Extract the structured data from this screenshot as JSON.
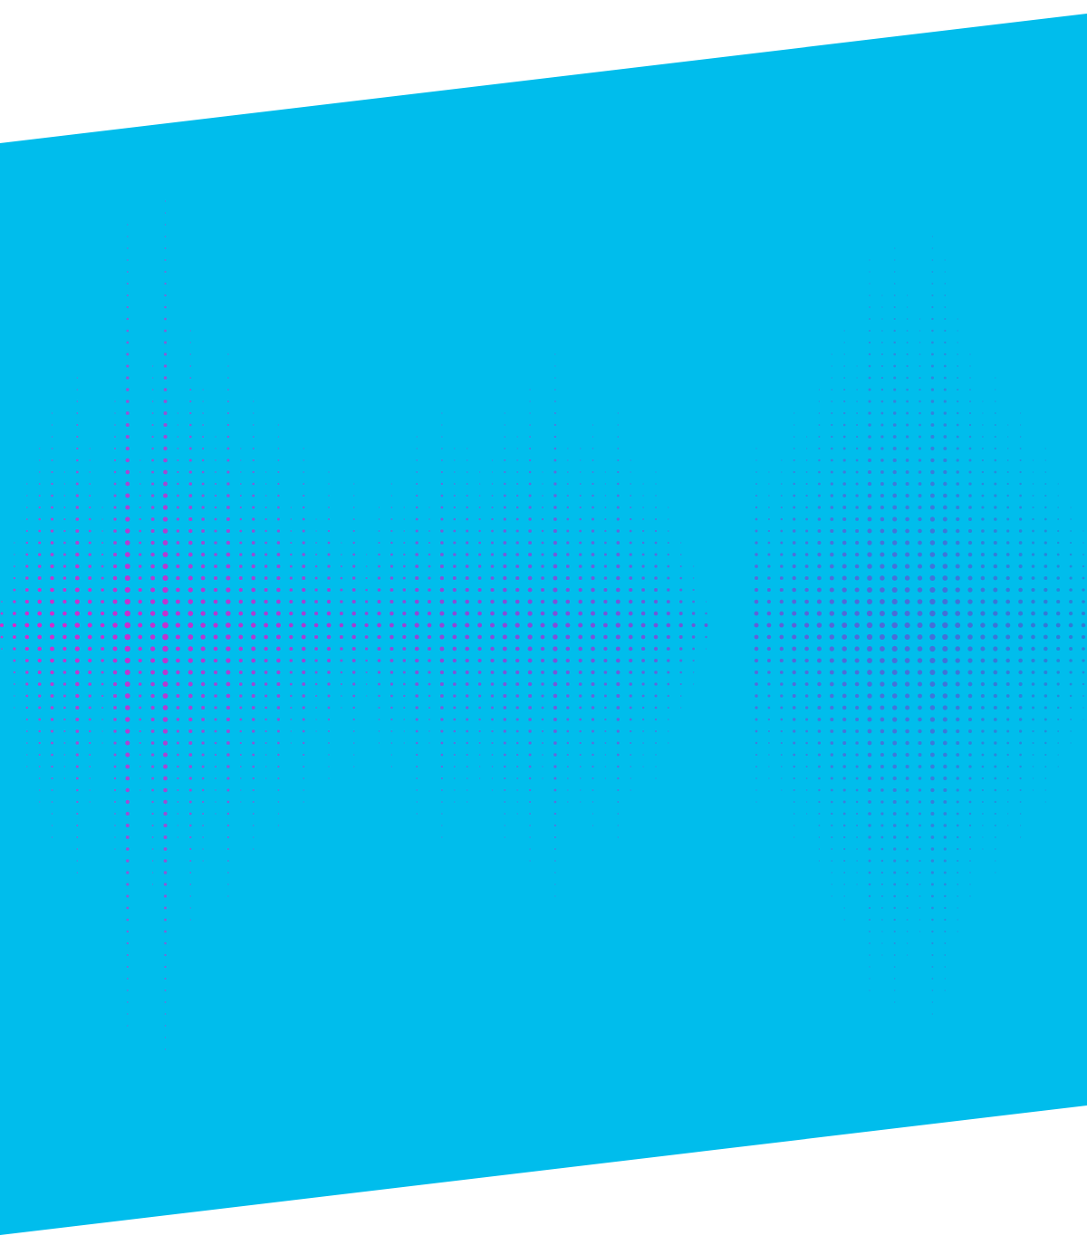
{
  "artwork": {
    "background_color": "#ffffff",
    "banner_color": "#00bdec",
    "dot_color_start": "#e81ec8",
    "dot_color_mid": "#8a46d8",
    "dot_color_end": "#2f78d6",
    "motif": "halftone-sound-wave",
    "waveform_envelope": [
      0.08,
      0.2,
      0.34,
      0.42,
      0.5,
      0.36,
      0.6,
      0.42,
      0.28,
      0.55,
      0.96,
      0.4,
      0.62,
      1.0,
      0.52,
      0.7,
      0.58,
      0.46,
      0.66,
      0.42,
      0.54,
      0.38,
      0.48,
      0.3,
      0.44,
      0.26,
      0.36,
      0.22,
      0.34,
      0.18,
      0.3,
      0.34,
      0.28,
      0.46,
      0.3,
      0.5,
      0.42,
      0.44,
      0.38,
      0.4,
      0.52,
      0.46,
      0.56,
      0.38,
      0.64,
      0.44,
      0.42,
      0.48,
      0.36,
      0.52,
      0.4,
      0.34,
      0.36,
      0.28,
      0.22,
      0.14,
      0.06,
      0.0,
      0.0,
      0.0,
      0.44,
      0.36,
      0.4,
      0.52,
      0.46,
      0.58,
      0.64,
      0.7,
      0.62,
      0.86,
      0.78,
      0.9,
      0.8,
      0.74,
      0.94,
      0.88,
      0.72,
      0.66,
      0.54,
      0.6,
      0.48,
      0.52,
      0.4,
      0.44,
      0.34,
      0.3,
      0.24
    ]
  }
}
